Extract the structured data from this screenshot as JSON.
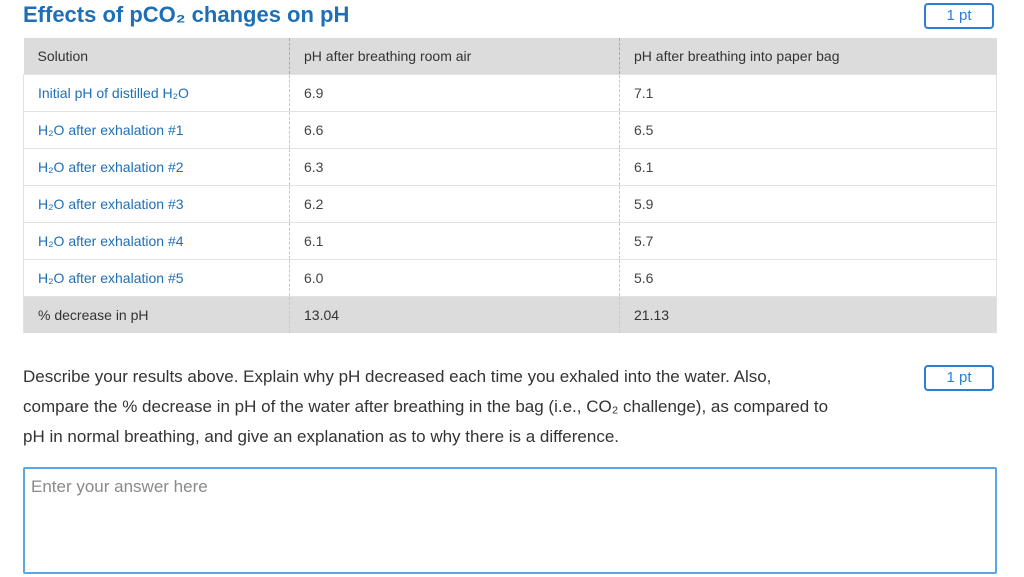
{
  "section": {
    "title": "Effects of pCO₂ changes on pH",
    "points_label": "1 pt"
  },
  "table": {
    "headers": [
      "Solution",
      "pH after breathing room air",
      "pH after breathing into paper bag"
    ],
    "rows": [
      {
        "solution": "Initial pH of distilled H₂O",
        "room_air": "6.9",
        "paper_bag": "7.1"
      },
      {
        "solution": "H₂O after exhalation #1",
        "room_air": "6.6",
        "paper_bag": "6.5"
      },
      {
        "solution": "H₂O after exhalation #2",
        "room_air": "6.3",
        "paper_bag": "6.1"
      },
      {
        "solution": "H₂O after exhalation #3",
        "room_air": "6.2",
        "paper_bag": "5.9"
      },
      {
        "solution": "H₂O after exhalation #4",
        "room_air": "6.1",
        "paper_bag": "5.7"
      },
      {
        "solution": "H₂O after exhalation #5",
        "room_air": "6.0",
        "paper_bag": "5.6"
      }
    ],
    "total": {
      "label": "% decrease in pH",
      "room_air": "13.04",
      "paper_bag": "21.13"
    }
  },
  "question": {
    "lines": [
      "Describe your results above.  Explain why pH decreased each time you exhaled into the water.  Also,",
      "compare the % decrease in pH of the water after breathing in the bag (i.e., CO₂ challenge), as compared to",
      "pH in normal breathing, and give an explanation as to why there is a difference."
    ],
    "points_label": "1 pt"
  },
  "answer": {
    "placeholder": "Enter your answer here",
    "value": ""
  }
}
